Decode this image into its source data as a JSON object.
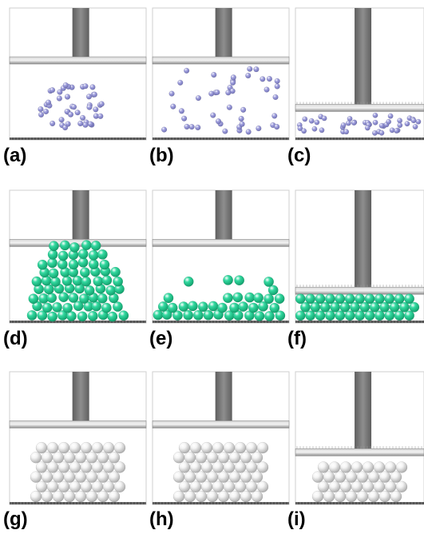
{
  "figure": {
    "panels": [
      {
        "label": "(a)",
        "particle": "gas",
        "state": "rest",
        "count": 45
      },
      {
        "label": "(b)",
        "particle": "gas",
        "state": "expanded",
        "count": 45
      },
      {
        "label": "(c)",
        "particle": "gas",
        "state": "compressed",
        "count": 45
      },
      {
        "label": "(d)",
        "particle": "liquid",
        "state": "rest",
        "count": 80
      },
      {
        "label": "(e)",
        "particle": "liquid",
        "state": "spread",
        "count": 80
      },
      {
        "label": "(f)",
        "particle": "liquid",
        "state": "compressed",
        "count": 80
      },
      {
        "label": "(g)",
        "particle": "solid",
        "state": "rest",
        "count": 48
      },
      {
        "label": "(h)",
        "particle": "solid",
        "state": "rest",
        "count": 48
      },
      {
        "label": "(i)",
        "particle": "solid",
        "state": "pressed",
        "count": 48
      }
    ],
    "colors": {
      "gas_particle": "#a4a4e0",
      "gas_particle_dark": "#6e6eb4",
      "liquid_particle": "#33d9a0",
      "liquid_particle_dark": "#0f9b68",
      "solid_particle": "#f4f4f4",
      "solid_particle_dark": "#a8a8a8",
      "piston_rod": "#7a7a7a",
      "piston_plate": "#b4b4b4",
      "box_border": "#cfcfcf",
      "floor": "#555555"
    }
  }
}
